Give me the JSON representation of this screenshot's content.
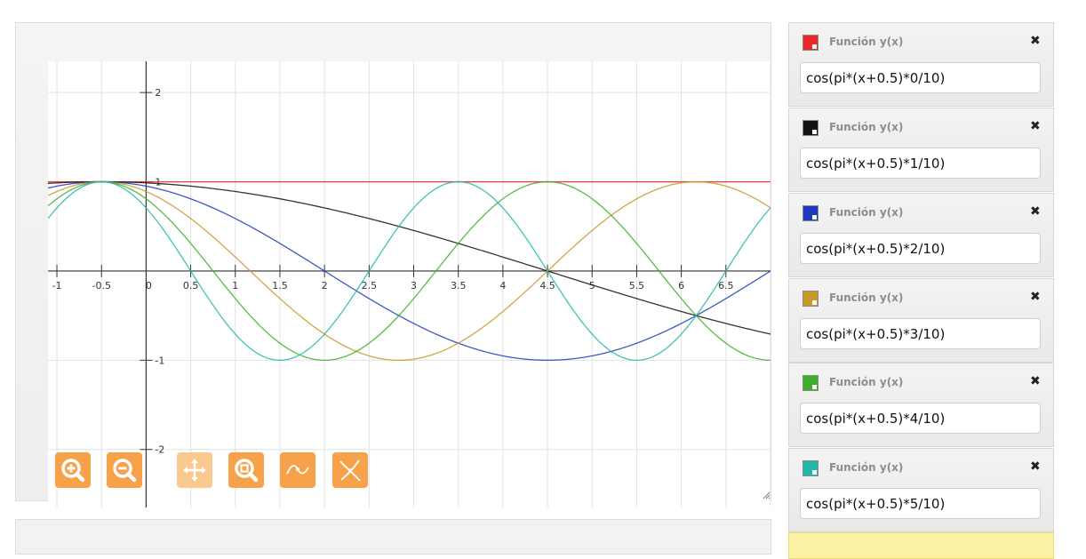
{
  "toolbar": {
    "buttons": [
      {
        "name": "zoom-in",
        "icon": "zoom-in-icon"
      },
      {
        "name": "zoom-out",
        "icon": "zoom-out-icon"
      },
      {
        "name": "pan",
        "icon": "move-icon"
      },
      {
        "name": "zoom-box",
        "icon": "zoom-box-icon"
      },
      {
        "name": "trace",
        "icon": "trace-curve-icon"
      },
      {
        "name": "intersect",
        "icon": "intersection-icon"
      }
    ]
  },
  "chart_data": {
    "type": "line",
    "xlim": [
      -1.1,
      7.0
    ],
    "ylim": [
      -2.65,
      2.35
    ],
    "x_ticks": [
      {
        "value": -1,
        "label": "-1"
      },
      {
        "value": -0.5,
        "label": "-0.5"
      },
      {
        "value": 0,
        "label": "0"
      },
      {
        "value": 0.5,
        "label": "0.5"
      },
      {
        "value": 1,
        "label": "1"
      },
      {
        "value": 1.5,
        "label": "1.5"
      },
      {
        "value": 2,
        "label": "2"
      },
      {
        "value": 2.5,
        "label": "2.5"
      },
      {
        "value": 3,
        "label": "3"
      },
      {
        "value": 3.5,
        "label": "3.5"
      },
      {
        "value": 4,
        "label": "4"
      },
      {
        "value": 4.5,
        "label": "4.5"
      },
      {
        "value": 5,
        "label": "5"
      },
      {
        "value": 5.5,
        "label": "5.5"
      },
      {
        "value": 6,
        "label": "6"
      },
      {
        "value": 6.5,
        "label": "6.5"
      }
    ],
    "y_ticks": [
      {
        "value": 2,
        "label": "2"
      },
      {
        "value": 1,
        "label": "1"
      },
      {
        "value": -1,
        "label": "-1"
      },
      {
        "value": -2,
        "label": "-2"
      }
    ],
    "grid": true,
    "series": [
      {
        "expression": "cos(pi*(x+0.5)*0/10)",
        "k": 0,
        "color": "#e8292a"
      },
      {
        "expression": "cos(pi*(x+0.5)*1/10)",
        "k": 1,
        "color": "#111111"
      },
      {
        "expression": "cos(pi*(x+0.5)*2/10)",
        "k": 2,
        "color": "#1c3bb8"
      },
      {
        "expression": "cos(pi*(x+0.5)*3/10)",
        "k": 3,
        "color": "#c89826"
      },
      {
        "expression": "cos(pi*(x+0.5)*4/10)",
        "k": 4,
        "color": "#3cae2a"
      },
      {
        "expression": "cos(pi*(x+0.5)*5/10)",
        "k": 5,
        "color": "#20b8a6"
      }
    ]
  },
  "functions": [
    {
      "title": "Función y(x)",
      "expression": "cos(pi*(x+0.5)*0/10)",
      "color": "#e8292a",
      "close": "✖"
    },
    {
      "title": "Función y(x)",
      "expression": "cos(pi*(x+0.5)*1/10)",
      "color": "#111111",
      "close": "✖"
    },
    {
      "title": "Función y(x)",
      "expression": "cos(pi*(x+0.5)*2/10)",
      "color": "#1c3bb8",
      "close": "✖"
    },
    {
      "title": "Función y(x)",
      "expression": "cos(pi*(x+0.5)*3/10)",
      "color": "#c89826",
      "close": "✖"
    },
    {
      "title": "Función y(x)",
      "expression": "cos(pi*(x+0.5)*4/10)",
      "color": "#3cae2a",
      "close": "✖"
    },
    {
      "title": "Función y(x)",
      "expression": "cos(pi*(x+0.5)*5/10)",
      "color": "#20b8a6",
      "close": "✖"
    }
  ]
}
